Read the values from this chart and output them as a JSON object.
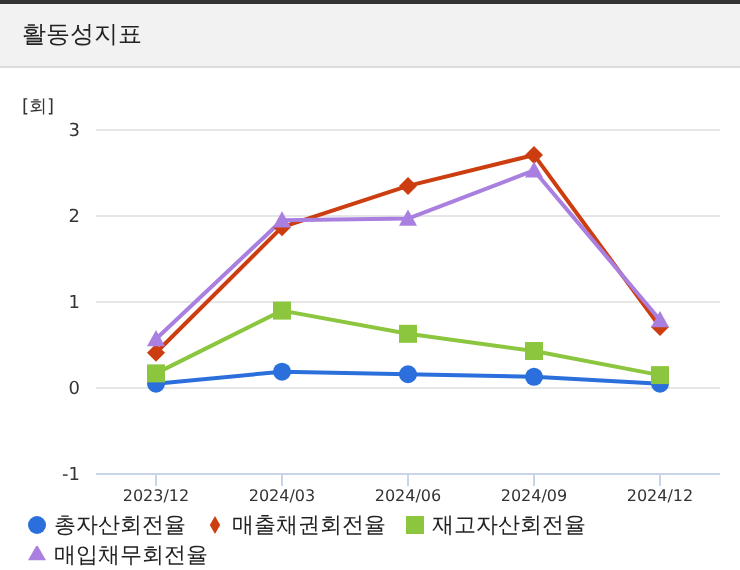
{
  "chart_data": {
    "type": "line",
    "title": "활동성지표",
    "ylabel": "[회]",
    "categories": [
      "2023/12",
      "2024/03",
      "2024/06",
      "2024/09",
      "2024/12"
    ],
    "series": [
      {
        "name": "총자산회전율",
        "color": "#2a6fdb",
        "marker": "circle",
        "values": [
          0.05,
          0.19,
          0.16,
          0.13,
          0.05
        ]
      },
      {
        "name": "매출채권회전율",
        "color": "#cc3d10",
        "marker": "diamond",
        "values": [
          0.41,
          1.87,
          2.35,
          2.71,
          0.71
        ]
      },
      {
        "name": "재고자산회전율",
        "color": "#8cc63f",
        "marker": "square",
        "values": [
          0.17,
          0.9,
          0.63,
          0.43,
          0.15
        ]
      },
      {
        "name": "매입채무회전율",
        "color": "#a97fe0",
        "marker": "triangle",
        "values": [
          0.57,
          1.95,
          1.97,
          2.53,
          0.79
        ]
      }
    ],
    "ylim": [
      -1,
      3
    ],
    "yticks": [
      -1,
      0,
      1,
      2,
      3
    ],
    "grid": "y",
    "legend": "bottom"
  }
}
